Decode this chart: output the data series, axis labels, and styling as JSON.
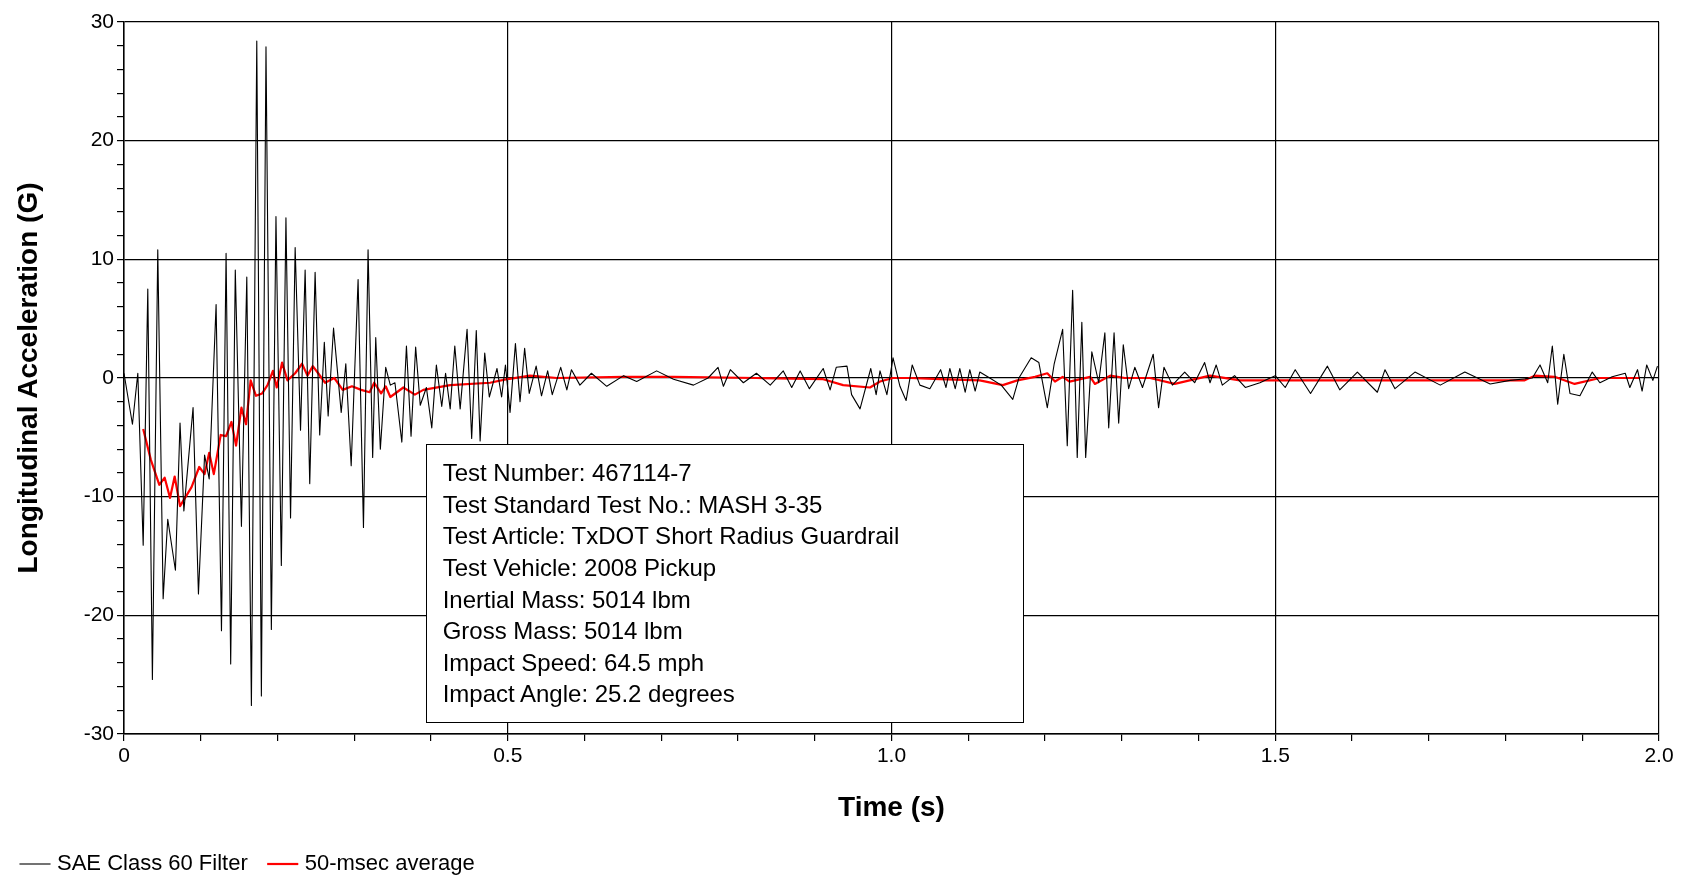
{
  "chart_data": {
    "type": "line",
    "xlabel": "Time (s)",
    "ylabel": "Longitudinal Acceleration (G)",
    "xlim": [
      0,
      2
    ],
    "ylim": [
      -30,
      30
    ],
    "xticks": [
      0,
      {
        "value": 0.1,
        "label": null
      },
      {
        "value": 0.2,
        "label": null
      },
      {
        "value": 0.3,
        "label": null
      },
      {
        "value": 0.4,
        "label": null
      },
      0.5,
      {
        "value": 0.6,
        "label": null
      },
      {
        "value": 0.7,
        "label": null
      },
      {
        "value": 0.8,
        "label": null
      },
      {
        "value": 0.9,
        "label": null
      },
      {
        "value": 1,
        "label": "1.0"
      },
      {
        "value": 1.1,
        "label": null
      },
      {
        "value": 1.2,
        "label": null
      },
      {
        "value": 1.3,
        "label": null
      },
      {
        "value": 1.4,
        "label": null
      },
      1.5,
      {
        "value": 1.6,
        "label": null
      },
      {
        "value": 1.7,
        "label": null
      },
      {
        "value": 1.8,
        "label": null
      },
      {
        "value": 1.9,
        "label": null
      },
      {
        "value": 2,
        "label": "2.0"
      }
    ],
    "yticks": [
      -30,
      {
        "value": -28,
        "label": null
      },
      {
        "value": -26,
        "label": null
      },
      {
        "value": -24,
        "label": null
      },
      {
        "value": -22,
        "label": null
      },
      -20,
      {
        "value": -18,
        "label": null
      },
      {
        "value": -16,
        "label": null
      },
      {
        "value": -14,
        "label": null
      },
      {
        "value": -12,
        "label": null
      },
      -10,
      {
        "value": -8,
        "label": null
      },
      {
        "value": -6,
        "label": null
      },
      {
        "value": -4,
        "label": null
      },
      {
        "value": -2,
        "label": null
      },
      0,
      {
        "value": 2,
        "label": null
      },
      {
        "value": 4,
        "label": null
      },
      {
        "value": 6,
        "label": null
      },
      {
        "value": 8,
        "label": null
      },
      10,
      {
        "value": 12,
        "label": null
      },
      {
        "value": 14,
        "label": null
      },
      {
        "value": 16,
        "label": null
      },
      {
        "value": 18,
        "label": null
      },
      20,
      {
        "value": 22,
        "label": null
      },
      {
        "value": 24,
        "label": null
      },
      {
        "value": 26,
        "label": null
      },
      {
        "value": 28,
        "label": null
      },
      30
    ],
    "grid": true,
    "legend": "bottom left",
    "marker": "none",
    "line_style": "solid",
    "annotations": [
      "Test Number: 467114-7",
      "Test Standard Test No.: MASH 3-35",
      "Test Article: TxDOT Short Radius Guardrail",
      "Test Vehicle: 2008 Pickup",
      "Inertial Mass: 5014 lbm",
      "Gross Mass: 5014 lbm",
      "Impact Speed: 64.5 mph",
      "Impact Angle: 25.2 degrees"
    ],
    "series": [
      {
        "name": "SAE Class 60 Filter",
        "color": "#000000",
        "x": [
          0,
          0.011,
          0.018,
          0.025,
          0.031,
          0.037,
          0.044,
          0.051,
          0.057,
          0.067,
          0.073,
          0.078,
          0.09,
          0.097,
          0.105,
          0.111,
          0.12,
          0.127,
          0.133,
          0.139,
          0.145,
          0.153,
          0.16,
          0.166,
          0.173,
          0.179,
          0.185,
          0.192,
          0.198,
          0.205,
          0.211,
          0.217,
          0.223,
          0.23,
          0.236,
          0.242,
          0.249,
          0.255,
          0.261,
          0.266,
          0.273,
          0.283,
          0.289,
          0.296,
          0.305,
          0.312,
          0.318,
          0.324,
          0.328,
          0.334,
          0.341,
          0.347,
          0.353,
          0.362,
          0.368,
          0.374,
          0.38,
          0.386,
          0.394,
          0.401,
          0.407,
          0.414,
          0.419,
          0.425,
          0.431,
          0.438,
          0.447,
          0.453,
          0.459,
          0.464,
          0.47,
          0.476,
          0.486,
          0.492,
          0.497,
          0.503,
          0.51,
          0.516,
          0.522,
          0.528,
          0.537,
          0.544,
          0.552,
          0.558,
          0.569,
          0.577,
          0.583,
          0.594,
          0.609,
          0.629,
          0.651,
          0.668,
          0.694,
          0.716,
          0.742,
          0.761,
          0.774,
          0.781,
          0.79,
          0.807,
          0.824,
          0.842,
          0.859,
          0.87,
          0.881,
          0.893,
          0.911,
          0.92,
          0.928,
          0.942,
          0.948,
          0.959,
          0.973,
          0.98,
          0.985,
          0.994,
          1.002,
          1.011,
          1.019,
          1.027,
          1.037,
          1.05,
          1.064,
          1.071,
          1.076,
          1.083,
          1.089,
          1.096,
          1.102,
          1.109,
          1.115,
          1.128,
          1.143,
          1.158,
          1.166,
          1.182,
          1.192,
          1.203,
          1.212,
          1.223,
          1.229,
          1.236,
          1.242,
          1.248,
          1.253,
          1.261,
          1.27,
          1.278,
          1.283,
          1.29,
          1.296,
          1.302,
          1.309,
          1.317,
          1.327,
          1.341,
          1.348,
          1.355,
          1.366,
          1.382,
          1.395,
          1.408,
          1.415,
          1.423,
          1.431,
          1.447,
          1.461,
          1.48,
          1.5,
          1.513,
          1.526,
          1.546,
          1.568,
          1.584,
          1.607,
          1.633,
          1.643,
          1.656,
          1.682,
          1.715,
          1.747,
          1.78,
          1.806,
          1.835,
          1.845,
          1.855,
          1.861,
          1.868,
          1.876,
          1.884,
          1.897,
          1.913,
          1.923,
          1.939,
          1.956,
          1.962,
          1.972,
          1.978,
          1.984,
          1.992,
          1.998
        ],
        "values": [
          0.4,
          -3.9,
          0.4,
          -14.1,
          7.5,
          -25.4,
          10.8,
          -18.6,
          -11.9,
          -16.2,
          -3.8,
          -11.2,
          -2.5,
          -18.2,
          -6.5,
          -8.5,
          6.2,
          -21.3,
          10.5,
          -24.1,
          9.1,
          -12.5,
          8.5,
          -27.6,
          28.4,
          -26.8,
          27.9,
          -21.2,
          13.6,
          -15.8,
          13.5,
          -11.8,
          11,
          -4.4,
          9.1,
          -8.9,
          8.9,
          -4.8,
          3,
          -3.2,
          4.2,
          -2.9,
          1.2,
          -7.4,
          8.3,
          -12.6,
          10.8,
          -6.7,
          3.4,
          -6,
          0.9,
          -0.6,
          -0.4,
          -5.4,
          2.7,
          -4.9,
          2.6,
          -2.3,
          -0.8,
          -4.2,
          1.1,
          -2.4,
          0.4,
          -2.6,
          2.7,
          -2.6,
          4.1,
          -5.1,
          4,
          -5.3,
          2.1,
          -1.6,
          0.8,
          -1.6,
          1.1,
          -2.9,
          2.9,
          -2,
          2.5,
          -1.3,
          1,
          -1.5,
          0.6,
          -1.4,
          0.9,
          -1,
          0.7,
          -0.6,
          0.4,
          -0.7,
          0.2,
          -0.3,
          0.6,
          -0.1,
          -0.6,
          0,
          0.9,
          -0.7,
          0.7,
          -0.4,
          0.4,
          -0.6,
          0.6,
          -0.8,
          0.6,
          -0.9,
          0.8,
          -1,
          0.9,
          1,
          -1.4,
          -2.6,
          0.8,
          -1.4,
          0.6,
          -1.4,
          1.7,
          -0.7,
          -1.9,
          1.1,
          -0.6,
          -0.9,
          0.7,
          -0.8,
          0.8,
          -0.9,
          0.8,
          -1.2,
          0.7,
          -1.1,
          0.5,
          0,
          -0.6,
          -1.8,
          0,
          1.7,
          1.3,
          -2.5,
          1.2,
          4.1,
          -5.7,
          7.4,
          -6.7,
          4.7,
          -6.7,
          2.2,
          -0.4,
          3.8,
          -4.2,
          3.8,
          -3.8,
          2.8,
          -0.9,
          0.9,
          -0.8,
          2,
          -2.5,
          0.9,
          -0.6,
          0.5,
          -0.4,
          1.3,
          -0.4,
          1.1,
          -0.6,
          0.2,
          -0.8,
          -0.4,
          0.2,
          -0.8,
          0.7,
          -1.3,
          1,
          -1,
          0.5,
          -1.2,
          0.7,
          -0.9,
          0.5,
          -0.6,
          0.5,
          -0.5,
          -0.2,
          0,
          1.1,
          -0.4,
          2.7,
          -2.2,
          2,
          -1.3,
          -1.5,
          0.5,
          -0.4,
          0.1,
          0.4,
          -0.8,
          0.7,
          -1.1,
          1.1,
          -0.2,
          1
        ]
      },
      {
        "name": "50-msec average",
        "color": "#ff0000",
        "x": [
          0.025,
          0.035,
          0.046,
          0.053,
          0.06,
          0.066,
          0.073,
          0.088,
          0.098,
          0.105,
          0.111,
          0.117,
          0.126,
          0.133,
          0.14,
          0.146,
          0.153,
          0.159,
          0.165,
          0.172,
          0.18,
          0.187,
          0.194,
          0.199,
          0.206,
          0.213,
          0.223,
          0.232,
          0.239,
          0.246,
          0.253,
          0.262,
          0.274,
          0.285,
          0.297,
          0.309,
          0.32,
          0.326,
          0.335,
          0.341,
          0.347,
          0.364,
          0.379,
          0.39,
          0.425,
          0.477,
          0.499,
          0.529,
          0.564,
          0.651,
          0.716,
          0.824,
          0.911,
          0.937,
          0.972,
          0.985,
          1.002,
          1.024,
          1.063,
          1.115,
          1.145,
          1.164,
          1.187,
          1.203,
          1.213,
          1.223,
          1.232,
          1.259,
          1.265,
          1.285,
          1.304,
          1.337,
          1.369,
          1.415,
          1.454,
          1.519,
          1.649,
          1.825,
          1.838,
          1.864,
          1.89,
          1.923,
          1.975
        ],
        "values": [
          -4.3,
          -6.9,
          -9,
          -8.4,
          -10.1,
          -8.3,
          -10.8,
          -9.2,
          -7.5,
          -8.1,
          -6.3,
          -8.1,
          -4.8,
          -4.9,
          -3.7,
          -5.7,
          -2.5,
          -3.9,
          -0.2,
          -1.5,
          -1.3,
          -0.6,
          0.6,
          -0.8,
          1.3,
          -0.2,
          0.4,
          1.2,
          0.2,
          1,
          0.4,
          -0.4,
          0,
          -1,
          -0.7,
          -1,
          -1.2,
          -0.4,
          -1.3,
          -0.7,
          -1.6,
          -0.8,
          -1.4,
          -1,
          -0.6,
          -0.4,
          -0.1,
          0.2,
          0,
          0.1,
          0.1,
          0,
          -0.1,
          -0.6,
          -0.8,
          -0.3,
          0,
          0,
          -0.1,
          -0.2,
          -0.6,
          -0.2,
          0.1,
          0.4,
          -0.3,
          0.1,
          -0.3,
          0.1,
          -0.5,
          0.2,
          0,
          0,
          -0.5,
          0.2,
          -0.2,
          -0.2,
          -0.2,
          -0.2,
          0.2,
          0.1,
          -0.5,
          0,
          0
        ]
      }
    ]
  }
}
